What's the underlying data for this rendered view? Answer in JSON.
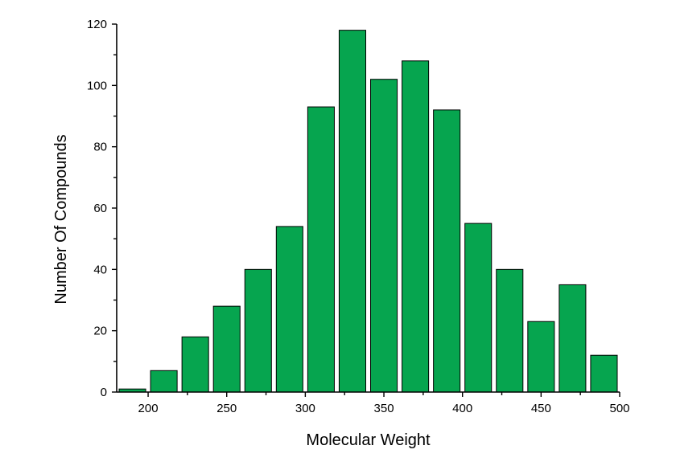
{
  "chart_data": {
    "type": "bar",
    "title": "",
    "xlabel": "Molecular Weight",
    "ylabel": "Number Of Compounds",
    "bar_color": "#06A54F",
    "xlim": [
      180,
      500
    ],
    "ylim": [
      0,
      120
    ],
    "grid": false,
    "legend": "none",
    "bin_width": 20,
    "x_ticks": [
      200,
      250,
      300,
      350,
      400,
      450,
      500
    ],
    "y_ticks": [
      0,
      20,
      40,
      60,
      80,
      100,
      120
    ],
    "x": [
      190,
      210,
      230,
      250,
      270,
      290,
      310,
      330,
      350,
      370,
      390,
      410,
      430,
      450,
      470,
      490
    ],
    "values": [
      1,
      7,
      18,
      28,
      40,
      54,
      93,
      118,
      102,
      108,
      92,
      55,
      40,
      23,
      35,
      12
    ]
  }
}
